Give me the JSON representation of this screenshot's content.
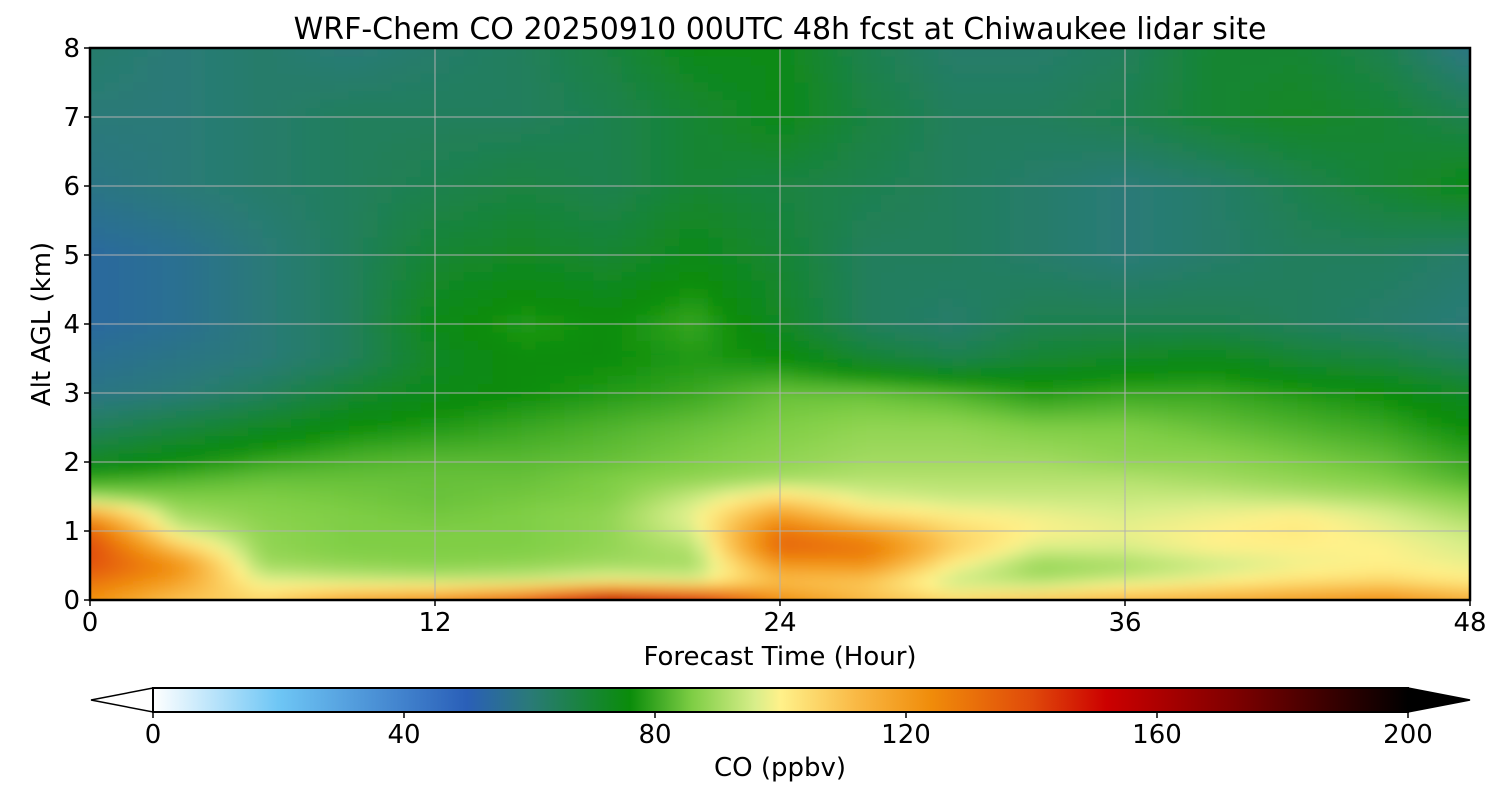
{
  "chart_data": {
    "type": "heatmap",
    "title": "WRF-Chem CO  20250910 00UTC 48h fcst at Chiwaukee lidar site",
    "xlabel": "Forecast Time (Hour)",
    "ylabel": "Alt AGL (km)",
    "xlim": [
      0,
      48
    ],
    "ylim": [
      0,
      8
    ],
    "x_ticks": [
      0,
      12,
      24,
      36,
      48
    ],
    "y_ticks": [
      0,
      1,
      2,
      3,
      4,
      5,
      6,
      7,
      8
    ],
    "grid": true,
    "x": [
      0,
      3,
      6,
      9,
      12,
      15,
      18,
      21,
      24,
      27,
      30,
      33,
      36,
      39,
      42,
      45,
      48
    ],
    "y": [
      0,
      0.25,
      0.5,
      0.75,
      1,
      1.25,
      1.5,
      1.75,
      2,
      2.5,
      3,
      3.5,
      4,
      5,
      6,
      7,
      8
    ],
    "z": [
      [
        122,
        110,
        106,
        118,
        124,
        136,
        160,
        150,
        124,
        112,
        106,
        110,
        114,
        116,
        120,
        124,
        116
      ],
      [
        130,
        118,
        98,
        96,
        95,
        96,
        100,
        98,
        110,
        108,
        94,
        92,
        96,
        100,
        104,
        106,
        102
      ],
      [
        138,
        124,
        90,
        88,
        87,
        88,
        90,
        90,
        120,
        122,
        100,
        88,
        90,
        94,
        98,
        100,
        98
      ],
      [
        140,
        110,
        88,
        86,
        86,
        86,
        88,
        92,
        134,
        130,
        108,
        96,
        96,
        100,
        100,
        100,
        96
      ],
      [
        134,
        96,
        88,
        86,
        86,
        86,
        88,
        96,
        130,
        120,
        106,
        100,
        98,
        100,
        102,
        98,
        94
      ],
      [
        118,
        90,
        87,
        86,
        85,
        86,
        88,
        98,
        118,
        104,
        100,
        98,
        96,
        98,
        100,
        96,
        90
      ],
      [
        88,
        86,
        86,
        85,
        84,
        85,
        86,
        94,
        104,
        96,
        94,
        94,
        94,
        94,
        92,
        90,
        86
      ],
      [
        80,
        82,
        84,
        84,
        84,
        84,
        86,
        88,
        90,
        92,
        92,
        92,
        92,
        90,
        88,
        86,
        82
      ],
      [
        72,
        76,
        80,
        82,
        83,
        83,
        84,
        86,
        88,
        90,
        90,
        90,
        88,
        88,
        86,
        84,
        80
      ],
      [
        64,
        68,
        72,
        76,
        78,
        80,
        82,
        84,
        86,
        88,
        88,
        86,
        86,
        84,
        82,
        80,
        76
      ],
      [
        58,
        60,
        64,
        70,
        74,
        76,
        78,
        80,
        84,
        84,
        82,
        78,
        80,
        80,
        78,
        76,
        72
      ],
      [
        56,
        58,
        60,
        64,
        72,
        76,
        76,
        78,
        76,
        70,
        66,
        70,
        72,
        74,
        70,
        68,
        64
      ],
      [
        54,
        56,
        60,
        64,
        74,
        78,
        76,
        80,
        72,
        64,
        62,
        66,
        66,
        66,
        64,
        62,
        60
      ],
      [
        54,
        56,
        60,
        64,
        70,
        72,
        70,
        74,
        70,
        64,
        64,
        62,
        60,
        62,
        64,
        64,
        62
      ],
      [
        58,
        60,
        62,
        64,
        66,
        68,
        66,
        70,
        68,
        66,
        64,
        62,
        60,
        62,
        66,
        70,
        74
      ],
      [
        60,
        60,
        62,
        64,
        64,
        64,
        66,
        70,
        74,
        68,
        64,
        64,
        66,
        70,
        72,
        70,
        66
      ],
      [
        62,
        60,
        62,
        60,
        62,
        64,
        68,
        74,
        74,
        66,
        62,
        62,
        64,
        70,
        70,
        66,
        58
      ]
    ],
    "colorbar": {
      "label": "CO  (ppbv)",
      "min": 0,
      "max": 200,
      "ticks": [
        0,
        40,
        80,
        120,
        160,
        200
      ],
      "extend": "both",
      "colors": [
        {
          "v": 0,
          "c": "#ffffff"
        },
        {
          "v": 20,
          "c": "#6ec6f5"
        },
        {
          "v": 50,
          "c": "#2a5fb8"
        },
        {
          "v": 60,
          "c": "#2a7a78"
        },
        {
          "v": 76,
          "c": "#0a8c0a"
        },
        {
          "v": 86,
          "c": "#7fce45"
        },
        {
          "v": 96,
          "c": "#d8ee8a"
        },
        {
          "v": 100,
          "c": "#fff18a"
        },
        {
          "v": 112,
          "c": "#f9b945"
        },
        {
          "v": 124,
          "c": "#f08c0a"
        },
        {
          "v": 140,
          "c": "#e04a0a"
        },
        {
          "v": 152,
          "c": "#cc0000"
        },
        {
          "v": 172,
          "c": "#800000"
        },
        {
          "v": 200,
          "c": "#000000"
        }
      ]
    }
  }
}
